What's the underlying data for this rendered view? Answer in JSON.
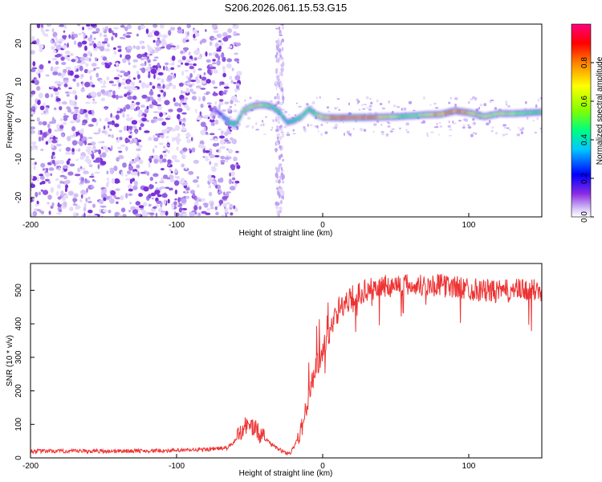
{
  "chart_data": [
    {
      "type": "heatmap",
      "title": "S206.2026.061.15.53.G15",
      "xlabel": "Height of straight line (km)",
      "ylabel": "Frequency (Hz)",
      "xlim": [
        -200,
        150
      ],
      "ylim": [
        -25,
        25
      ],
      "x_ticks": [
        -200,
        -100,
        0,
        100
      ],
      "x_tick_labels": [
        "-200",
        "-100",
        "0",
        "100"
      ],
      "y_ticks": [
        20,
        10,
        0,
        -10,
        -20
      ],
      "y_tick_labels": [
        "20",
        "10",
        "0",
        "-10",
        "-20"
      ],
      "colorbar": {
        "label": "Normalized spectral amplitude",
        "range": [
          0,
          1
        ],
        "ticks": [
          0.0,
          0.2,
          0.4,
          0.6,
          0.8
        ],
        "tick_labels": [
          "0.0",
          "0.2",
          "0.4",
          "0.6",
          "0.8"
        ],
        "colormap": [
          "#ffffff",
          "#d8c8f8",
          "#8a2be2",
          "#0000ff",
          "#00c8ff",
          "#00ff80",
          "#80ff00",
          "#ffff00",
          "#ff8000",
          "#ff0000",
          "#ff0080"
        ]
      },
      "noise_region_km": [
        -200,
        -65
      ],
      "signal_track": {
        "x": [
          -75,
          -70,
          -65,
          -60,
          -55,
          -50,
          -45,
          -40,
          -35,
          -30,
          -25,
          -20,
          -15,
          -10,
          -5,
          0,
          10,
          20,
          30,
          40,
          50,
          60,
          70,
          80,
          90,
          100,
          110,
          120,
          130,
          140,
          150
        ],
        "freq": [
          3.0,
          1.5,
          -0.5,
          -1.0,
          2.5,
          3.5,
          4.0,
          4.0,
          3.5,
          2.0,
          -0.5,
          0.0,
          1.0,
          3.0,
          1.5,
          0.8,
          0.7,
          0.8,
          0.8,
          0.9,
          1.0,
          1.2,
          1.5,
          1.6,
          2.5,
          2.0,
          1.0,
          1.8,
          1.8,
          2.0,
          2.2
        ],
        "amplitude": [
          0.15,
          0.3,
          0.45,
          0.5,
          0.55,
          0.6,
          0.7,
          0.55,
          0.5,
          0.45,
          0.4,
          0.45,
          0.5,
          0.5,
          0.6,
          0.7,
          0.9,
          0.9,
          0.85,
          0.75,
          0.6,
          0.55,
          0.65,
          0.8,
          0.85,
          0.75,
          0.6,
          0.65,
          0.6,
          0.55,
          0.5
        ]
      }
    },
    {
      "type": "line",
      "title": "",
      "xlabel": "Height of straight line (km)",
      "ylabel": "SNR (10 * v/v)",
      "xlim": [
        -200,
        150
      ],
      "ylim": [
        0,
        580
      ],
      "x_ticks": [
        -200,
        -100,
        0,
        100
      ],
      "x_tick_labels": [
        "-200",
        "-100",
        "0",
        "100"
      ],
      "y_ticks": [
        0,
        100,
        200,
        300,
        400,
        500
      ],
      "y_tick_labels": [
        "0",
        "100",
        "200",
        "300",
        "400",
        "500"
      ],
      "series": [
        {
          "name": "SNR",
          "color": "#ee3333",
          "x": [
            -200,
            -150,
            -100,
            -80,
            -65,
            -60,
            -55,
            -50,
            -45,
            -40,
            -35,
            -30,
            -25,
            -22,
            -20,
            -15,
            -10,
            -5,
            0,
            5,
            10,
            15,
            20,
            30,
            40,
            50,
            60,
            70,
            80,
            90,
            100,
            110,
            120,
            130,
            140,
            150
          ],
          "y": [
            20,
            20,
            22,
            25,
            30,
            50,
            90,
            100,
            80,
            60,
            40,
            25,
            15,
            15,
            30,
            80,
            170,
            260,
            320,
            380,
            430,
            460,
            480,
            500,
            510,
            515,
            515,
            515,
            515,
            510,
            505,
            500,
            495,
            500,
            500,
            500
          ]
        }
      ]
    }
  ]
}
